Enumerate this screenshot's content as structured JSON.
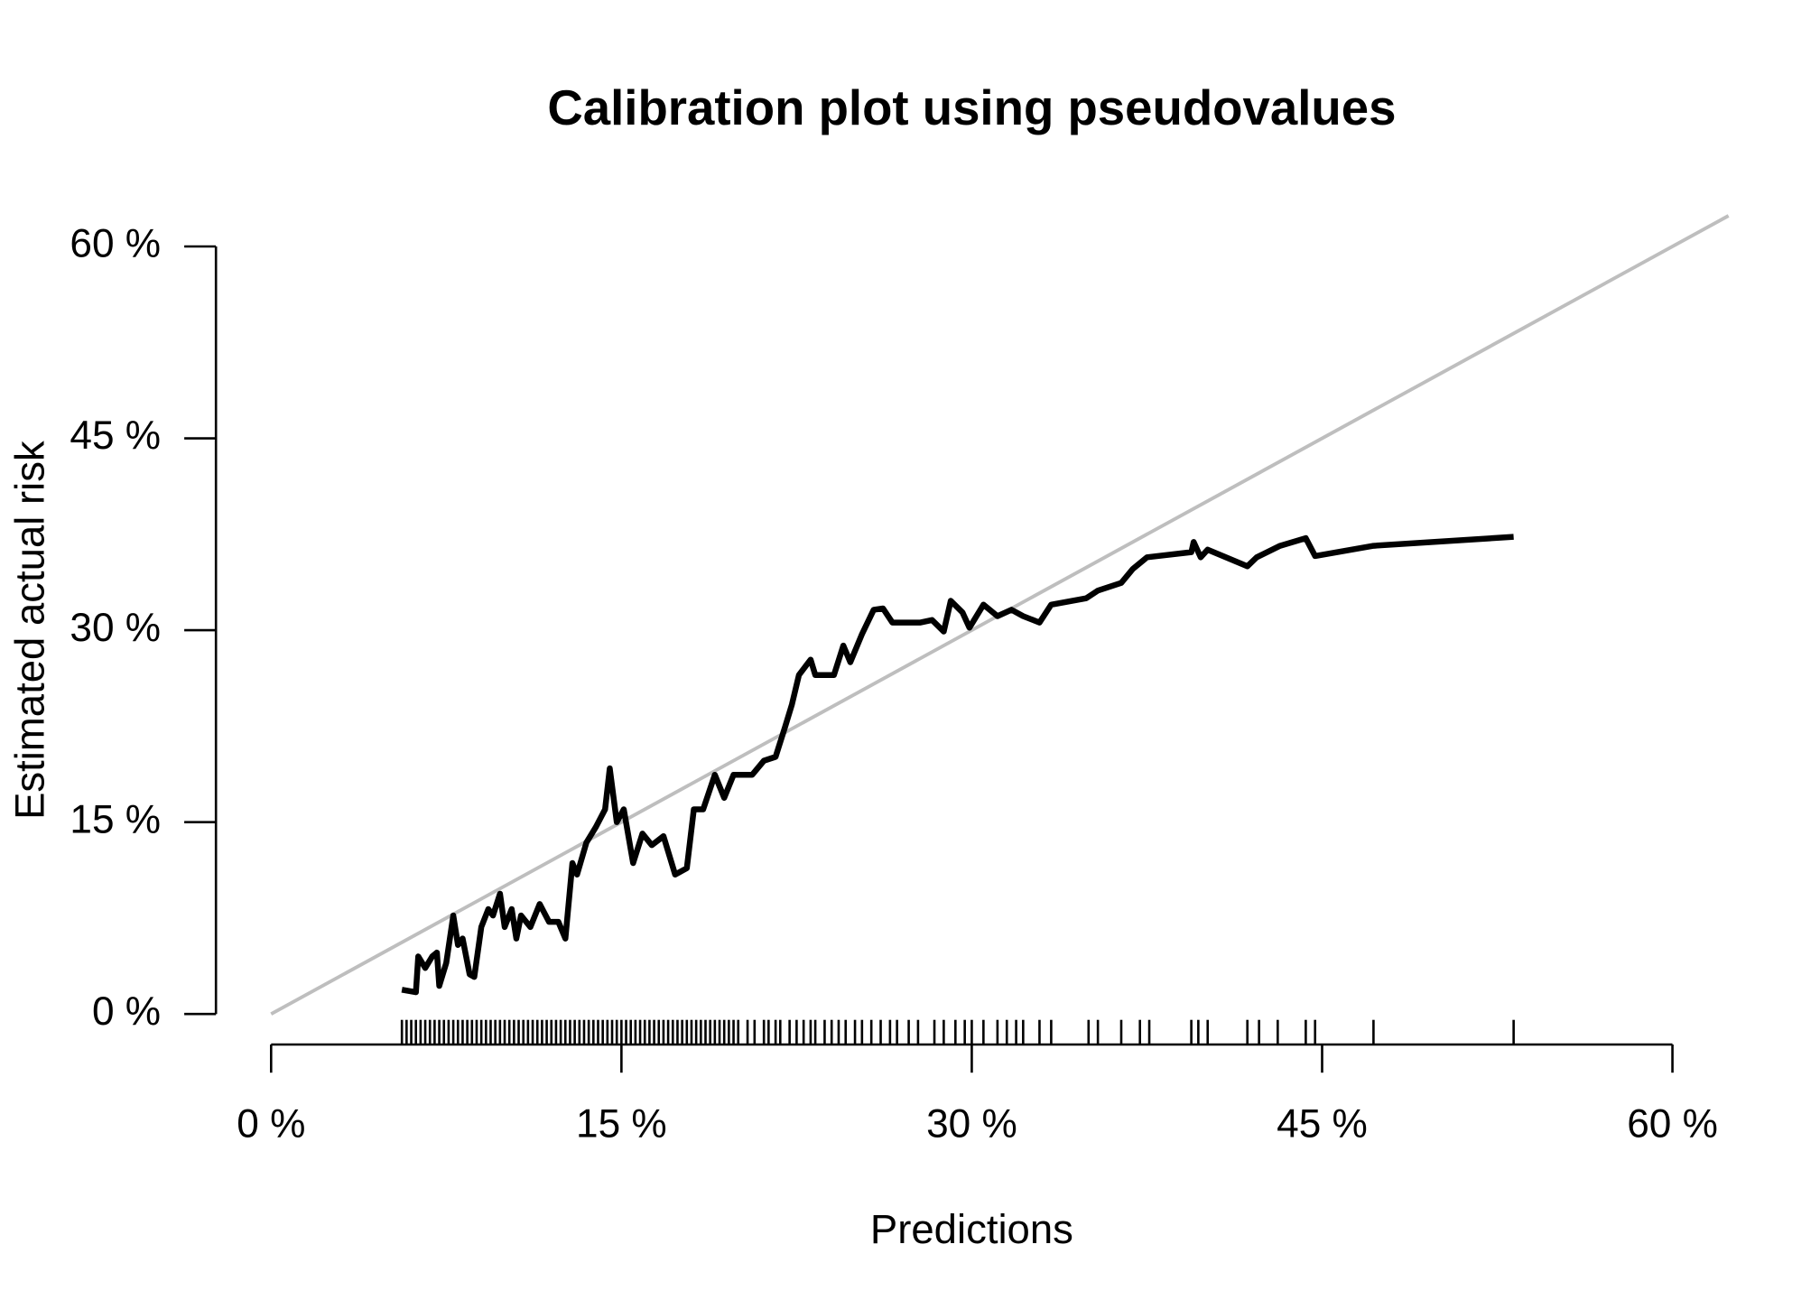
{
  "chart_data": {
    "type": "line",
    "title": "Calibration plot using pseudovalues",
    "x_label": "Predictions",
    "y_label": "Estimated actual risk",
    "xlim": [
      0,
      62.4
    ],
    "ylim": [
      0,
      62.5
    ],
    "xticks": [
      {
        "value": 0,
        "label": "0 %"
      },
      {
        "value": 15,
        "label": "15 %"
      },
      {
        "value": 30,
        "label": "30 %"
      },
      {
        "value": 45,
        "label": "45 %"
      },
      {
        "value": 60,
        "label": "60 %"
      }
    ],
    "yticks": [
      {
        "value": 0,
        "label": "0 %"
      },
      {
        "value": 15,
        "label": "15 %"
      },
      {
        "value": 30,
        "label": "30 %"
      },
      {
        "value": 45,
        "label": "45 %"
      },
      {
        "value": 60,
        "label": "60 %"
      }
    ],
    "reference_line": {
      "slope": 1,
      "intercept": 0,
      "color": "#bebebe"
    },
    "series": [
      {
        "color": "#000000",
        "x": [
          5.6,
          6.2,
          6.3,
          6.6,
          6.9,
          7.1,
          7.2,
          7.5,
          7.8,
          8.0,
          8.2,
          8.5,
          8.7,
          9.0,
          9.3,
          9.5,
          9.8,
          10.0,
          10.3,
          10.5,
          10.7,
          11.1,
          11.5,
          11.9,
          12.3,
          12.6,
          12.9,
          13.1,
          13.5,
          13.9,
          14.3,
          14.5,
          14.8,
          15.1,
          15.5,
          15.9,
          16.3,
          16.8,
          17.3,
          17.8,
          18.1,
          18.5,
          19.0,
          19.4,
          19.8,
          20.6,
          21.1,
          21.6,
          22.0,
          22.3,
          22.6,
          23.1,
          23.3,
          24.1,
          24.5,
          24.8,
          25.3,
          25.8,
          26.2,
          26.6,
          27.5,
          27.8,
          28.3,
          28.8,
          29.1,
          29.6,
          29.9,
          30.5,
          31.1,
          31.7,
          32.2,
          32.9,
          33.4,
          34.9,
          35.4,
          36.4,
          36.9,
          37.5,
          39.4,
          39.5,
          39.8,
          40.1,
          41.8,
          42.2,
          43.2,
          44.3,
          44.7,
          47.2,
          53.2
        ],
        "values": [
          1.9,
          1.7,
          4.5,
          3.6,
          4.5,
          4.8,
          2.2,
          4.0,
          7.7,
          5.4,
          5.9,
          3.1,
          2.9,
          6.8,
          8.2,
          7.7,
          9.4,
          6.8,
          8.2,
          5.9,
          7.7,
          6.8,
          8.6,
          7.2,
          7.2,
          5.9,
          11.8,
          10.9,
          13.4,
          14.6,
          16.0,
          19.2,
          15.0,
          16.0,
          11.8,
          14.1,
          13.2,
          13.9,
          10.9,
          11.4,
          16.0,
          16.0,
          18.7,
          16.9,
          18.7,
          18.7,
          19.8,
          20.1,
          22.4,
          24.2,
          26.5,
          27.7,
          26.5,
          26.5,
          28.8,
          27.5,
          29.7,
          31.6,
          31.7,
          30.6,
          30.6,
          30.6,
          30.8,
          29.9,
          32.3,
          31.4,
          30.2,
          32.0,
          31.1,
          31.6,
          31.1,
          30.6,
          32.0,
          32.5,
          33.1,
          33.7,
          34.8,
          35.7,
          36.1,
          36.9,
          35.7,
          36.3,
          35.0,
          35.7,
          36.6,
          37.2,
          35.8,
          36.6,
          37.3
        ]
      }
    ],
    "rug_color": "#000000",
    "rug": [
      5.6,
      5.8,
      6.0,
      6.2,
      6.4,
      6.6,
      6.8,
      7.0,
      7.2,
      7.4,
      7.6,
      7.8,
      8.0,
      8.2,
      8.4,
      8.6,
      8.8,
      9.0,
      9.2,
      9.4,
      9.6,
      9.8,
      10.0,
      10.2,
      10.4,
      10.6,
      10.8,
      11.0,
      11.2,
      11.4,
      11.6,
      11.8,
      12.0,
      12.2,
      12.4,
      12.6,
      12.8,
      13.0,
      13.2,
      13.4,
      13.6,
      13.8,
      14.0,
      14.2,
      14.4,
      14.6,
      14.8,
      15.0,
      15.2,
      15.4,
      15.6,
      15.8,
      16.0,
      16.2,
      16.4,
      16.6,
      16.8,
      17.0,
      17.2,
      17.4,
      17.6,
      17.8,
      18.0,
      18.2,
      18.4,
      18.6,
      18.8,
      19.0,
      19.2,
      19.4,
      19.6,
      19.8,
      20.0,
      20.4,
      20.7,
      21.1,
      21.3,
      21.6,
      21.8,
      22.2,
      22.5,
      22.8,
      23.1,
      23.3,
      23.7,
      24.0,
      24.3,
      24.6,
      25.0,
      25.3,
      25.7,
      26.1,
      26.5,
      26.8,
      27.3,
      27.7,
      28.4,
      28.8,
      29.3,
      29.7,
      30.0,
      30.5,
      31.1,
      31.5,
      31.9,
      32.2,
      32.9,
      33.4,
      35.0,
      35.4,
      36.4,
      37.2,
      37.6,
      39.4,
      39.7,
      40.1,
      41.8,
      42.3,
      43.1,
      44.3,
      44.7,
      47.2,
      53.2
    ]
  }
}
